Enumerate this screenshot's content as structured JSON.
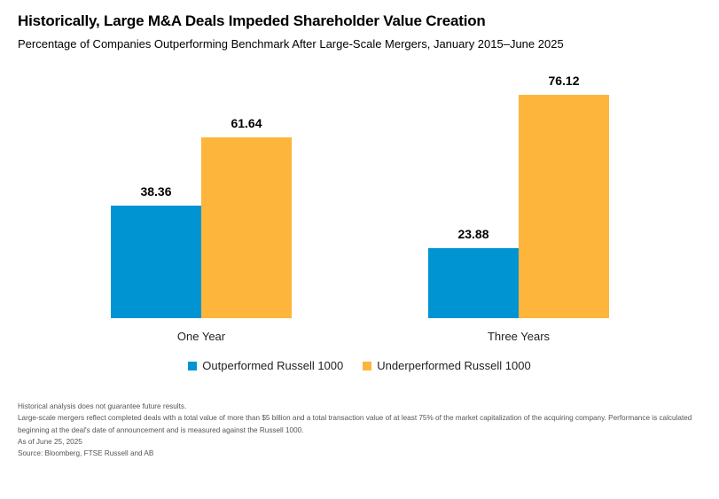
{
  "chart_data": {
    "type": "bar",
    "title": "Historically, Large M&A Deals Impeded Shareholder Value Creation",
    "subtitle": "Percentage of Companies Outperforming Benchmark After Large-Scale Mergers, January 2015–June 2025",
    "categories": [
      "One Year",
      "Three Years"
    ],
    "series": [
      {
        "name": "Outperformed Russell 1000",
        "values": [
          38.36,
          23.88
        ],
        "color": "#0094D3"
      },
      {
        "name": "Underperformed Russell 1000",
        "values": [
          61.64,
          76.12
        ],
        "color": "#FDB53C"
      }
    ],
    "ylim": [
      0,
      76.12
    ],
    "grid": false,
    "legend_position": "bottom-center",
    "data_labels": [
      "38.36",
      "61.64",
      "23.88",
      "76.12"
    ]
  },
  "notes": [
    "Historical analysis does not guarantee future results.",
    "Large-scale mergers reflect completed deals with a total value of more than $5 billion and a total transaction value of at least 75% of the market capitalization of the acquiring company. Performance is calculated beginning at the deal's date of announcement and is measured against the Russell 1000.",
    "As of June 25, 2025",
    "Source: Bloomberg, FTSE Russell and AB"
  ]
}
